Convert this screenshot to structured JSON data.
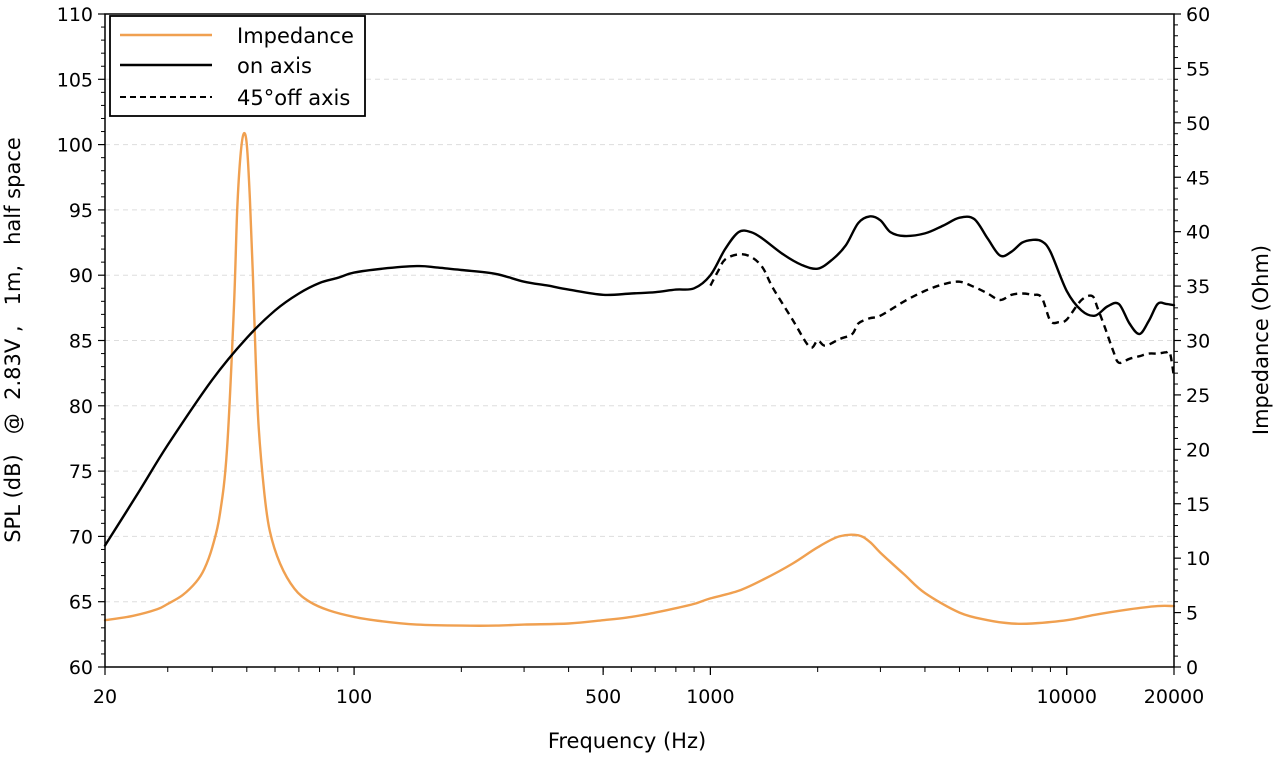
{
  "chart_data": {
    "type": "line",
    "x_scale": "log",
    "xlim": [
      20,
      20000
    ],
    "ylim": [
      60,
      110
    ],
    "y2lim": [
      0,
      60
    ],
    "xlabel": "Frequency (Hz)",
    "ylabel": "SPL (dB)   @  2.83V ,   1m,   half space",
    "y2label": "Impedance (Ohm)",
    "x_ticks": [
      20,
      100,
      500,
      1000,
      10000,
      20000
    ],
    "x_tick_labels": [
      "20",
      "100",
      "500",
      "1000",
      "10000",
      "20000"
    ],
    "y_ticks": [
      60,
      65,
      70,
      75,
      80,
      85,
      90,
      95,
      100,
      105,
      110
    ],
    "y_tick_labels": [
      "60",
      "65",
      "70",
      "75",
      "80",
      "85",
      "90",
      "95",
      "100",
      "105",
      "110"
    ],
    "y2_ticks": [
      0,
      5,
      10,
      15,
      20,
      25,
      30,
      35,
      40,
      45,
      50,
      55,
      60
    ],
    "y2_tick_labels": [
      "0",
      "5",
      "10",
      "15",
      "20",
      "25",
      "30",
      "35",
      "40",
      "45",
      "50",
      "55",
      "60"
    ],
    "grid": true,
    "legend_position": "top-left",
    "series": [
      {
        "name": "Impedance",
        "axis": "right",
        "color": "#f0a050",
        "style": "solid",
        "x": [
          20,
          24,
          28,
          30,
          33,
          36,
          38,
          40,
          42,
          44,
          46,
          47,
          48,
          49,
          50,
          51,
          52,
          53,
          54,
          56,
          58,
          62,
          68,
          75,
          85,
          100,
          120,
          150,
          200,
          250,
          300,
          400,
          500,
          600,
          700,
          800,
          900,
          1000,
          1200,
          1400,
          1700,
          2000,
          2300,
          2600,
          2800,
          3000,
          3500,
          4000,
          5000,
          6000,
          7000,
          8000,
          10000,
          12000,
          15000,
          18000,
          20000
        ],
        "y": [
          4.3,
          4.7,
          5.3,
          5.8,
          6.6,
          7.8,
          9.0,
          11.0,
          14.0,
          20.0,
          33.0,
          42.0,
          47.0,
          49.0,
          48.0,
          43.0,
          36.0,
          28.0,
          22.0,
          16.0,
          12.5,
          9.5,
          7.2,
          6.0,
          5.2,
          4.6,
          4.2,
          3.9,
          3.8,
          3.8,
          3.9,
          4.0,
          4.3,
          4.6,
          5.0,
          5.4,
          5.8,
          6.3,
          7.0,
          8.0,
          9.5,
          11.0,
          12.0,
          12.1,
          11.5,
          10.5,
          8.5,
          6.8,
          5.0,
          4.3,
          4.0,
          4.0,
          4.3,
          4.8,
          5.3,
          5.6,
          5.6
        ]
      },
      {
        "name": "on axis",
        "axis": "left",
        "color": "#000000",
        "style": "solid",
        "x": [
          20,
          25,
          30,
          40,
          50,
          60,
          70,
          80,
          90,
          100,
          120,
          150,
          170,
          200,
          250,
          300,
          350,
          400,
          500,
          600,
          700,
          800,
          900,
          1000,
          1100,
          1200,
          1300,
          1400,
          1600,
          1800,
          2000,
          2200,
          2400,
          2600,
          2800,
          3000,
          3200,
          3500,
          4000,
          4500,
          5000,
          5500,
          6000,
          6500,
          7000,
          7500,
          8000,
          8500,
          9000,
          10000,
          11000,
          12000,
          13000,
          14000,
          15000,
          16000,
          17000,
          18000,
          19000,
          20000
        ],
        "y": [
          69.3,
          73.5,
          77.0,
          82.0,
          85.2,
          87.3,
          88.6,
          89.4,
          89.8,
          90.2,
          90.5,
          90.7,
          90.6,
          90.4,
          90.1,
          89.5,
          89.2,
          88.9,
          88.5,
          88.6,
          88.7,
          88.9,
          89.0,
          90.0,
          92.0,
          93.3,
          93.3,
          92.8,
          91.6,
          90.8,
          90.5,
          91.2,
          92.3,
          94.0,
          94.5,
          94.2,
          93.3,
          93.0,
          93.2,
          93.8,
          94.4,
          94.3,
          92.8,
          91.5,
          91.8,
          92.5,
          92.7,
          92.6,
          91.8,
          88.8,
          87.3,
          86.9,
          87.6,
          87.8,
          86.3,
          85.5,
          86.5,
          87.8,
          87.8,
          87.7
        ]
      },
      {
        "name": "45°off axis",
        "axis": "left",
        "color": "#000000",
        "style": "dashed",
        "x": [
          1000,
          1050,
          1100,
          1200,
          1300,
          1400,
          1500,
          1700,
          1900,
          2000,
          2100,
          2300,
          2500,
          2600,
          2800,
          3000,
          3500,
          4000,
          4500,
          5000,
          5500,
          6000,
          6500,
          7000,
          7500,
          8000,
          8500,
          9000,
          9500,
          10000,
          11000,
          11800,
          12200,
          12800,
          13500,
          14000,
          15000,
          16000,
          17000,
          18000,
          19000,
          19500,
          20000
        ],
        "y": [
          89.2,
          90.3,
          91.2,
          91.6,
          91.4,
          90.6,
          89.0,
          86.6,
          84.5,
          85.0,
          84.6,
          85.1,
          85.5,
          86.3,
          86.7,
          86.9,
          88.0,
          88.8,
          89.3,
          89.5,
          89.1,
          88.6,
          88.1,
          88.5,
          88.6,
          88.5,
          88.3,
          86.5,
          86.4,
          86.6,
          88.1,
          88.4,
          87.5,
          86.0,
          84.2,
          83.3,
          83.6,
          83.8,
          84.0,
          84.0,
          84.1,
          84.0,
          82.2
        ]
      }
    ],
    "legend": [
      {
        "label": "Impedance",
        "color": "#f0a050",
        "style": "solid"
      },
      {
        "label": "on axis",
        "color": "#000000",
        "style": "solid"
      },
      {
        "label": "45°off axis",
        "color": "#000000",
        "style": "dashed"
      }
    ]
  }
}
